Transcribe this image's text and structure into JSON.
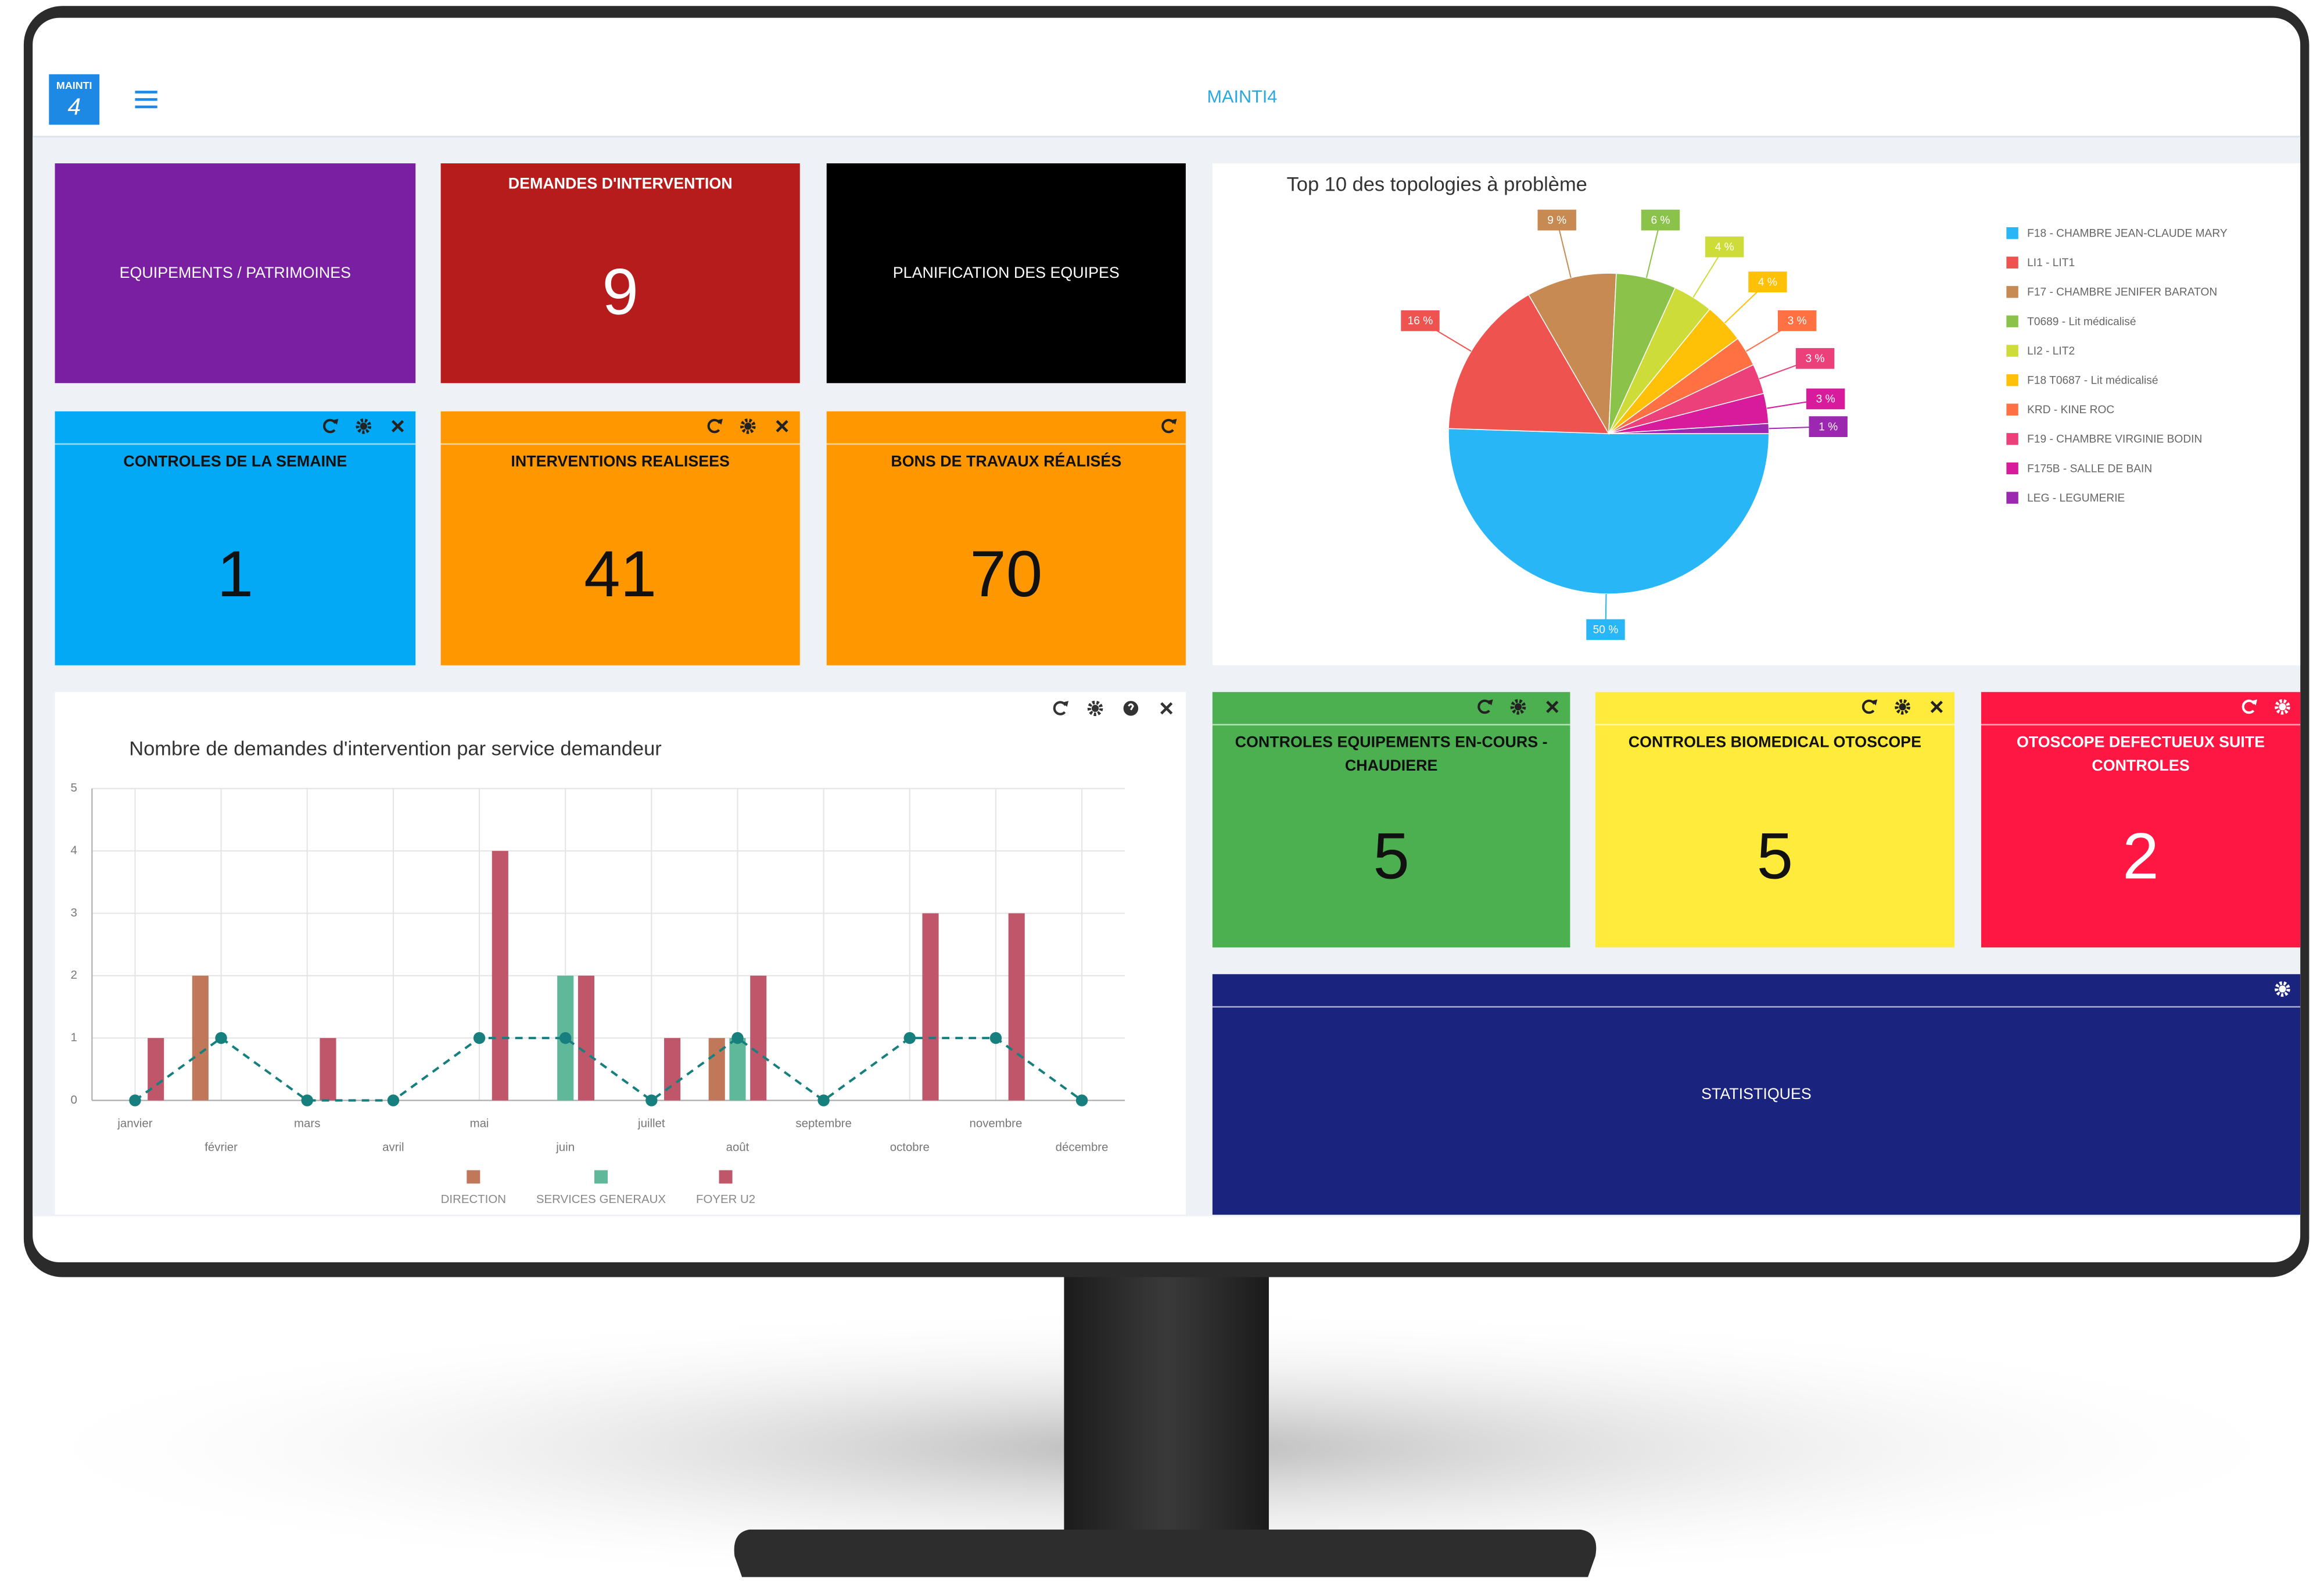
{
  "header": {
    "logo_text": "MAINTI",
    "logo_number": "4",
    "app_title": "MAINTI4"
  },
  "tiles": [
    {
      "title": "EQUIPEMENTS / PATRIMOINES",
      "color": "#7b1fa2",
      "text_color": "#ffffff"
    },
    {
      "title": "DEMANDES D'INTERVENTION",
      "value": 9,
      "color": "#b71c1c",
      "text_color": "#ffffff"
    },
    {
      "title": "PLANIFICATION DES EQUIPES",
      "color": "#000000",
      "text_color": "#ffffff"
    },
    {
      "title": "CONTROLES DE LA SEMAINE",
      "value": 1,
      "color": "#03a9f4",
      "text_color": "#111111"
    },
    {
      "title": "INTERVENTIONS REALISEES",
      "value": 41,
      "color": "#ff9800",
      "text_color": "#111111"
    },
    {
      "title": "BONS DE TRAVAUX RÉALISÉS",
      "value": 70,
      "color": "#ff9800",
      "text_color": "#111111"
    },
    {
      "title": "CONTROLES EQUIPEMENTS EN-COURS - CHAUDIERE",
      "value": 5,
      "color": "#4caf50",
      "text_color": "#111111"
    },
    {
      "title": "CONTROLES BIOMEDICAL OTOSCOPE",
      "value": 5,
      "color": "#ffeb3b",
      "text_color": "#111111"
    },
    {
      "title": "OTOSCOPE DEFECTUEUX SUITE CONTROLES",
      "value": 2,
      "color": "#ff1744",
      "text_color": "#ffffff"
    },
    {
      "title": "STATISTIQUES",
      "color": "#1a237e",
      "text_color": "#ffffff"
    }
  ],
  "chart_data": [
    {
      "type": "pie",
      "title": "Top 10 des topologies à problème",
      "categories": [
        "F18 - CHAMBRE JEAN-CLAUDE MARY",
        "LI1 - LIT1",
        "F17 - CHAMBRE JENIFER BARATON",
        "T0689 - Lit médicalisé",
        "LI2 - LIT2",
        "F18 T0687 - Lit médicalisé",
        "KRD - KINE ROC",
        "F19 - CHAMBRE VIRGINIE BODIN",
        "F175B - SALLE DE BAIN",
        "LEG - LEGUMERIE"
      ],
      "values": [
        50,
        16,
        9,
        6,
        4,
        4,
        3,
        3,
        3,
        1
      ],
      "value_labels": [
        "50 %",
        "16 %",
        "9 %",
        "6 %",
        "4 %",
        "4 %",
        "3 %",
        "3 %",
        "3 %",
        "1 %"
      ],
      "colors": [
        "#29b6f6",
        "#ef5350",
        "#c68a52",
        "#8bc34a",
        "#cddc39",
        "#ffc107",
        "#ff7043",
        "#ec407a",
        "#d81b9c",
        "#9c27b0"
      ]
    },
    {
      "type": "bar",
      "title": "Nombre de demandes d'intervention par service demandeur",
      "categories": [
        "janvier",
        "février",
        "mars",
        "avril",
        "mai",
        "juin",
        "juillet",
        "août",
        "septembre",
        "octobre",
        "novembre",
        "décembre"
      ],
      "series": [
        {
          "name": "DIRECTION",
          "color": "#c0775a",
          "values": [
            0,
            2,
            0,
            0,
            0,
            0,
            0,
            1,
            0,
            0,
            0,
            0
          ]
        },
        {
          "name": "SERVICES GENERAUX",
          "color": "#5fb89a",
          "values": [
            0,
            0,
            0,
            0,
            0,
            2,
            0,
            1,
            0,
            0,
            0,
            0
          ]
        },
        {
          "name": "FOYER U2",
          "color": "#c0566a",
          "values": [
            1,
            0,
            1,
            0,
            4,
            2,
            1,
            2,
            0,
            3,
            3,
            0
          ]
        }
      ],
      "line": {
        "color": "#17807e",
        "values": [
          0,
          1,
          0,
          0,
          1,
          1,
          0,
          1,
          0,
          1,
          1,
          0
        ]
      },
      "ylim": [
        0,
        5
      ],
      "yticks": [
        0,
        1,
        2,
        3,
        4,
        5
      ],
      "grid": true
    }
  ]
}
